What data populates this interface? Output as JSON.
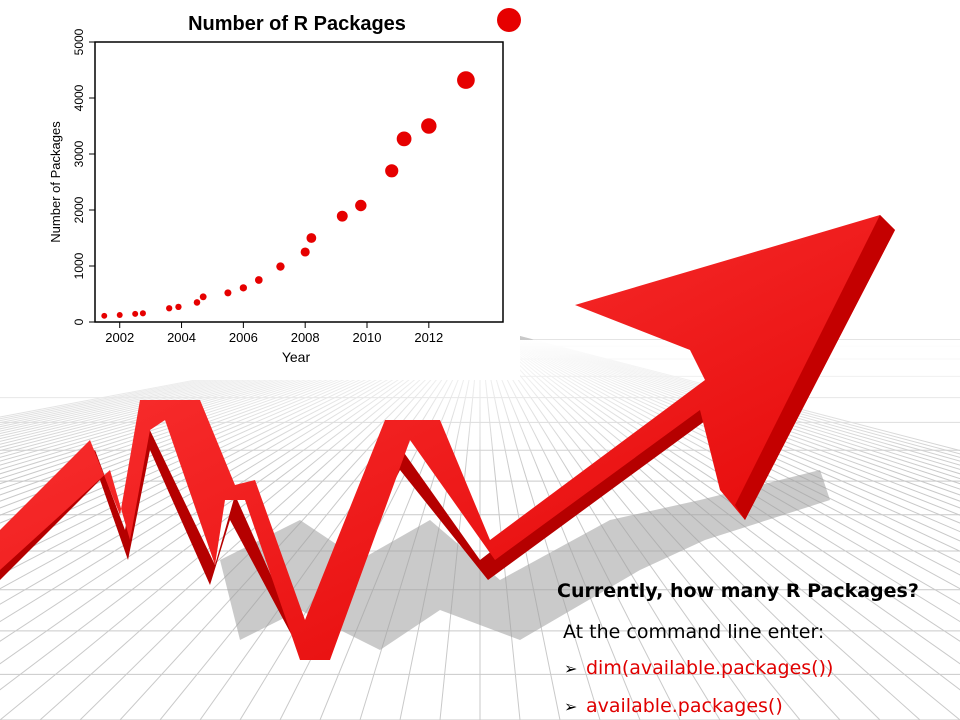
{
  "chart_data": {
    "type": "scatter",
    "title": "Number of R Packages",
    "xlabel": "Year",
    "ylabel": "Number of Packages",
    "xlim": [
      2001.2,
      2014.4
    ],
    "ylim": [
      0,
      5000
    ],
    "xticks": [
      2002,
      2004,
      2006,
      2008,
      2010,
      2012
    ],
    "yticks": [
      0,
      1000,
      2000,
      3000,
      4000,
      5000
    ],
    "grid": false,
    "marker_color": "#e60000",
    "x": [
      2001.5,
      2002.0,
      2002.5,
      2002.75,
      2003.6,
      2003.9,
      2004.5,
      2004.7,
      2005.5,
      2006.0,
      2006.5,
      2007.2,
      2008.0,
      2008.2,
      2009.2,
      2009.8,
      2010.8,
      2011.2,
      2012.0,
      2013.2
    ],
    "y": [
      110,
      125,
      145,
      155,
      245,
      270,
      350,
      450,
      520,
      610,
      750,
      990,
      1250,
      1500,
      1890,
      2080,
      2700,
      3270,
      3500,
      4320
    ]
  },
  "slide": {
    "question": "Currently, how many R Packages?",
    "instruction": "At the command line enter:",
    "bullet_marker": "➢",
    "bullets": [
      "dim(available.packages())",
      "available.packages()"
    ],
    "accent_color": "#e00000"
  }
}
